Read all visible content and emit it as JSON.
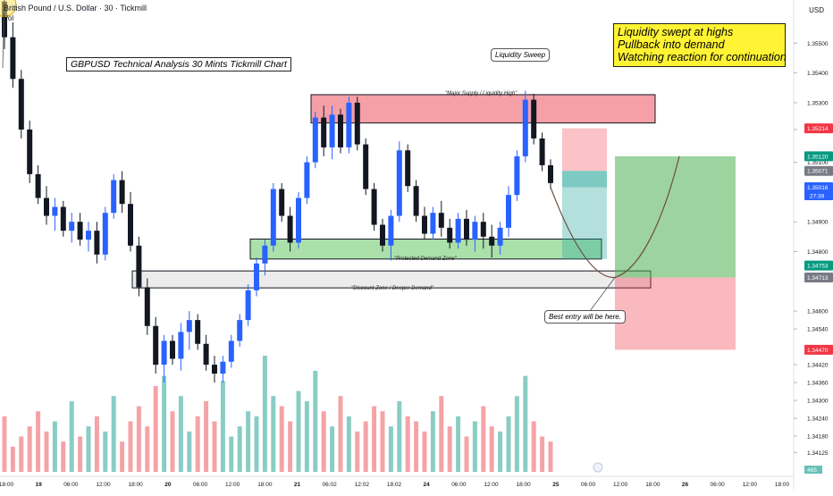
{
  "header": {
    "instrument_title": "British Pound / U.S. Dollar · 30 · Tickmill",
    "volume_label": "Vol",
    "currency": "USD"
  },
  "annotations": {
    "chart_title": "GBPUSD Technical Analysis 30 Mints Tickmill Chart",
    "callout_lines": [
      "Liquidity swept at highs",
      "Pullback into demand",
      "Watching reaction for continuation"
    ],
    "liquidity_sweep": "Liquidity Sweep",
    "supply_zone": "\"Major Supply / Liquidity High\"",
    "demand_zone": "\"Protected Demand Zone\"",
    "discount_zone": "\"Discount Zone / Deeper Demand\"",
    "best_entry": "Best entry will be here."
  },
  "colors": {
    "bull": "#2962ff",
    "bear": "#131722",
    "vol_up": "#89cdc5",
    "vol_down": "#f4a3a7",
    "supply": "#f28f96",
    "demand": "#8fd58f",
    "discount": "#e6e6e6",
    "target": "#4caf50",
    "stop": "#f23645",
    "sweep": "#fbe26b",
    "callout": "#fff333"
  },
  "chart_data": {
    "type": "candlestick",
    "title": "British Pound / U.S. Dollar · 30 · Tickmill",
    "ylabel": "USD",
    "ylim": [
      1.34045,
      1.35645
    ],
    "y_ticks": [
      1.355,
      1.354,
      1.353,
      1.3521,
      1.351,
      1.349,
      1.348,
      1.346,
      1.3454,
      1.3442,
      1.3436,
      1.343,
      1.3424,
      1.3418,
      1.34125
    ],
    "price_tags": [
      {
        "label": "1.35120",
        "value": 1.3512,
        "color": "#089981"
      },
      {
        "label": "1.35214",
        "value": 1.35214,
        "color": "#f23645"
      },
      {
        "label": "1.35071",
        "value": 1.35071,
        "color": "#787b86"
      },
      {
        "label": "1.35016",
        "sub": "27:39",
        "value": 1.35016,
        "color": "#2962ff"
      },
      {
        "label": "1.34753",
        "value": 1.34753,
        "color": "#089981"
      },
      {
        "label": "1.34713",
        "value": 1.34713,
        "color": "#787b86"
      },
      {
        "label": "1.34470",
        "value": 1.3447,
        "color": "#f23645"
      }
    ],
    "x_ticks": [
      "18:00",
      "19",
      "06:00",
      "12:00",
      "18:00",
      "20",
      "06:00",
      "12:00",
      "18:00",
      "21",
      "06:02",
      "12:02",
      "18:02",
      "24",
      "06:00",
      "12:00",
      "18:00",
      "25",
      "06:00",
      "12:00",
      "18:00",
      "26",
      "06:00",
      "12:00",
      "18:00"
    ],
    "volume_last_label": "465",
    "zones": {
      "supply": {
        "top": 1.35327,
        "bottom": 1.35232
      },
      "demand": {
        "top": 1.34842,
        "bottom": 1.34775
      },
      "discount": {
        "top": 1.34735,
        "bottom": 1.34678
      }
    },
    "position": {
      "entry": 1.34713,
      "target": 1.3512,
      "stop": 1.3447,
      "pending_top": 1.35214,
      "pending_mid": 1.35071,
      "pending_low": 1.35016
    },
    "projected_path": [
      {
        "label": "current",
        "value": 1.35016
      },
      {
        "label": "entry",
        "value": 1.34713
      },
      {
        "label": "target",
        "value": 1.3512
      }
    ],
    "ohlc": [
      [
        1.3564,
        1.3564,
        1.3548,
        1.3552
      ],
      [
        1.3552,
        1.3557,
        1.3535,
        1.3538
      ],
      [
        1.3538,
        1.3541,
        1.3518,
        1.3521
      ],
      [
        1.3521,
        1.3524,
        1.3503,
        1.3506
      ],
      [
        1.3506,
        1.3509,
        1.3496,
        1.3498
      ],
      [
        1.3498,
        1.3502,
        1.3489,
        1.3492
      ],
      [
        1.3492,
        1.3498,
        1.3487,
        1.3495
      ],
      [
        1.3495,
        1.3497,
        1.3485,
        1.3487
      ],
      [
        1.3487,
        1.3493,
        1.3483,
        1.349
      ],
      [
        1.349,
        1.3493,
        1.3482,
        1.3484
      ],
      [
        1.3484,
        1.349,
        1.348,
        1.3487
      ],
      [
        1.3487,
        1.349,
        1.3476,
        1.3479
      ],
      [
        1.3479,
        1.3495,
        1.3477,
        1.3493
      ],
      [
        1.3493,
        1.3506,
        1.3491,
        1.3504
      ],
      [
        1.3504,
        1.3507,
        1.3493,
        1.3496
      ],
      [
        1.3496,
        1.35,
        1.348,
        1.3482
      ],
      [
        1.3482,
        1.3485,
        1.3465,
        1.3468
      ],
      [
        1.3468,
        1.3471,
        1.3452,
        1.3455
      ],
      [
        1.3455,
        1.3458,
        1.3439,
        1.3442
      ],
      [
        1.3442,
        1.3452,
        1.3436,
        1.345
      ],
      [
        1.345,
        1.3452,
        1.3442,
        1.3444
      ],
      [
        1.3444,
        1.3456,
        1.344,
        1.3453
      ],
      [
        1.3453,
        1.346,
        1.3447,
        1.3457
      ],
      [
        1.3457,
        1.3459,
        1.3447,
        1.3449
      ],
      [
        1.3449,
        1.3452,
        1.344,
        1.3442
      ],
      [
        1.3442,
        1.3445,
        1.3436,
        1.3439
      ],
      [
        1.3439,
        1.3445,
        1.3436,
        1.3443
      ],
      [
        1.3443,
        1.3452,
        1.3441,
        1.345
      ],
      [
        1.345,
        1.3459,
        1.3448,
        1.3457
      ],
      [
        1.3457,
        1.3469,
        1.3455,
        1.3467
      ],
      [
        1.3467,
        1.3478,
        1.3465,
        1.3476
      ],
      [
        1.3476,
        1.3484,
        1.3472,
        1.3482
      ],
      [
        1.3482,
        1.3503,
        1.348,
        1.3501
      ],
      [
        1.3501,
        1.3503,
        1.349,
        1.3492
      ],
      [
        1.3492,
        1.3495,
        1.348,
        1.3483
      ],
      [
        1.3483,
        1.35,
        1.3481,
        1.3498
      ],
      [
        1.3498,
        1.3512,
        1.3496,
        1.351
      ],
      [
        1.351,
        1.3527,
        1.3508,
        1.3525
      ],
      [
        1.3525,
        1.3529,
        1.3512,
        1.3515
      ],
      [
        1.3515,
        1.3529,
        1.3511,
        1.3526
      ],
      [
        1.3526,
        1.3528,
        1.3513,
        1.3515
      ],
      [
        1.3515,
        1.3532,
        1.3513,
        1.353
      ],
      [
        1.353,
        1.3532,
        1.3514,
        1.3516
      ],
      [
        1.3516,
        1.3518,
        1.3499,
        1.3501
      ],
      [
        1.3501,
        1.3503,
        1.3487,
        1.3489
      ],
      [
        1.3489,
        1.3491,
        1.348,
        1.3482
      ],
      [
        1.3482,
        1.3494,
        1.3477,
        1.3492
      ],
      [
        1.3492,
        1.3517,
        1.349,
        1.3514
      ],
      [
        1.3514,
        1.3516,
        1.35,
        1.3502
      ],
      [
        1.3502,
        1.3504,
        1.349,
        1.3492
      ],
      [
        1.3492,
        1.3495,
        1.3484,
        1.3486
      ],
      [
        1.3486,
        1.3495,
        1.3484,
        1.3493
      ],
      [
        1.3493,
        1.3497,
        1.3485,
        1.3488
      ],
      [
        1.3488,
        1.3491,
        1.3481,
        1.3483
      ],
      [
        1.3483,
        1.3493,
        1.3481,
        1.3491
      ],
      [
        1.3491,
        1.3494,
        1.3482,
        1.3484
      ],
      [
        1.3484,
        1.3492,
        1.348,
        1.349
      ],
      [
        1.349,
        1.3493,
        1.3481,
        1.3485
      ],
      [
        1.3485,
        1.3489,
        1.3478,
        1.3482
      ],
      [
        1.3482,
        1.349,
        1.3479,
        1.3488
      ],
      [
        1.3488,
        1.3502,
        1.3485,
        1.3499
      ],
      [
        1.3499,
        1.3514,
        1.3497,
        1.3512
      ],
      [
        1.3512,
        1.3534,
        1.351,
        1.3531
      ],
      [
        1.3531,
        1.3533,
        1.3516,
        1.3518
      ],
      [
        1.3518,
        1.352,
        1.3507,
        1.3509
      ],
      [
        1.3509,
        1.3511,
        1.3501,
        1.3503
      ]
    ],
    "volume": [
      22,
      10,
      14,
      18,
      24,
      16,
      20,
      12,
      28,
      14,
      18,
      22,
      16,
      30,
      12,
      20,
      26,
      18,
      34,
      38,
      24,
      30,
      16,
      22,
      28,
      20,
      36,
      14,
      18,
      24,
      22,
      46,
      30,
      26,
      20,
      32,
      28,
      40,
      24,
      18,
      30,
      22,
      16,
      20,
      26,
      24,
      18,
      28,
      22,
      20,
      16,
      24,
      30,
      18,
      22,
      14,
      20,
      26,
      18,
      16,
      22,
      30,
      38,
      20,
      14,
      12
    ]
  }
}
